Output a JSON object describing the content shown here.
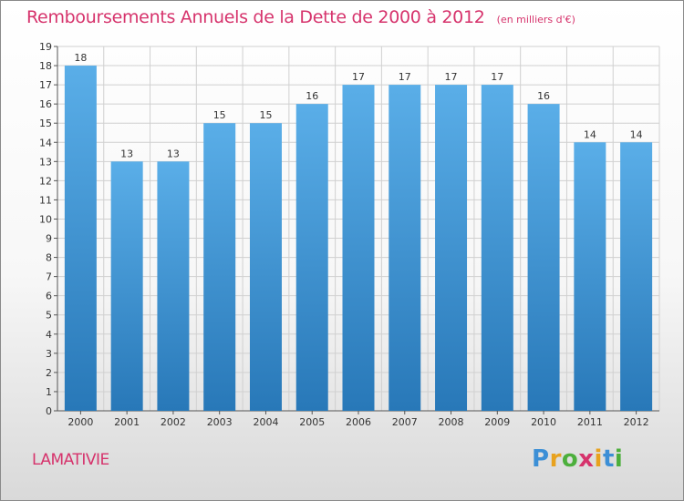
{
  "chart_data": {
    "type": "bar",
    "title": "Remboursements Annuels de la Dette de 2000 à 2012",
    "unit_note": "(en milliers d'€)",
    "categories": [
      "2000",
      "2001",
      "2002",
      "2003",
      "2004",
      "2005",
      "2006",
      "2007",
      "2008",
      "2009",
      "2010",
      "2011",
      "2012"
    ],
    "values": [
      18,
      13,
      13,
      15,
      15,
      16,
      17,
      17,
      17,
      17,
      16,
      14,
      14
    ],
    "yticks": [
      "0",
      "1",
      "2",
      "3",
      "4",
      "5",
      "6",
      "7",
      "8",
      "9",
      "10",
      "11",
      "12",
      "13",
      "14",
      "15",
      "16",
      "17",
      "18",
      "19"
    ],
    "ylim": [
      0,
      19
    ],
    "xlabel": "",
    "ylabel": "",
    "grid": true,
    "bar_color_top": "#5aaee8",
    "bar_color_bottom": "#2878b8"
  },
  "commune": "LAMATIVIE",
  "logo": {
    "letters": [
      "P",
      "r",
      "o",
      "x",
      "i",
      "t",
      "i"
    ],
    "colors": [
      "#3c8fd6",
      "#e8a21e",
      "#4caf3c",
      "#d6336c",
      "#e8a21e",
      "#3c8fd6",
      "#4caf3c"
    ]
  },
  "colors": {
    "title": "#d6336c",
    "grid": "#d0d0d0",
    "axis": "#555555"
  }
}
